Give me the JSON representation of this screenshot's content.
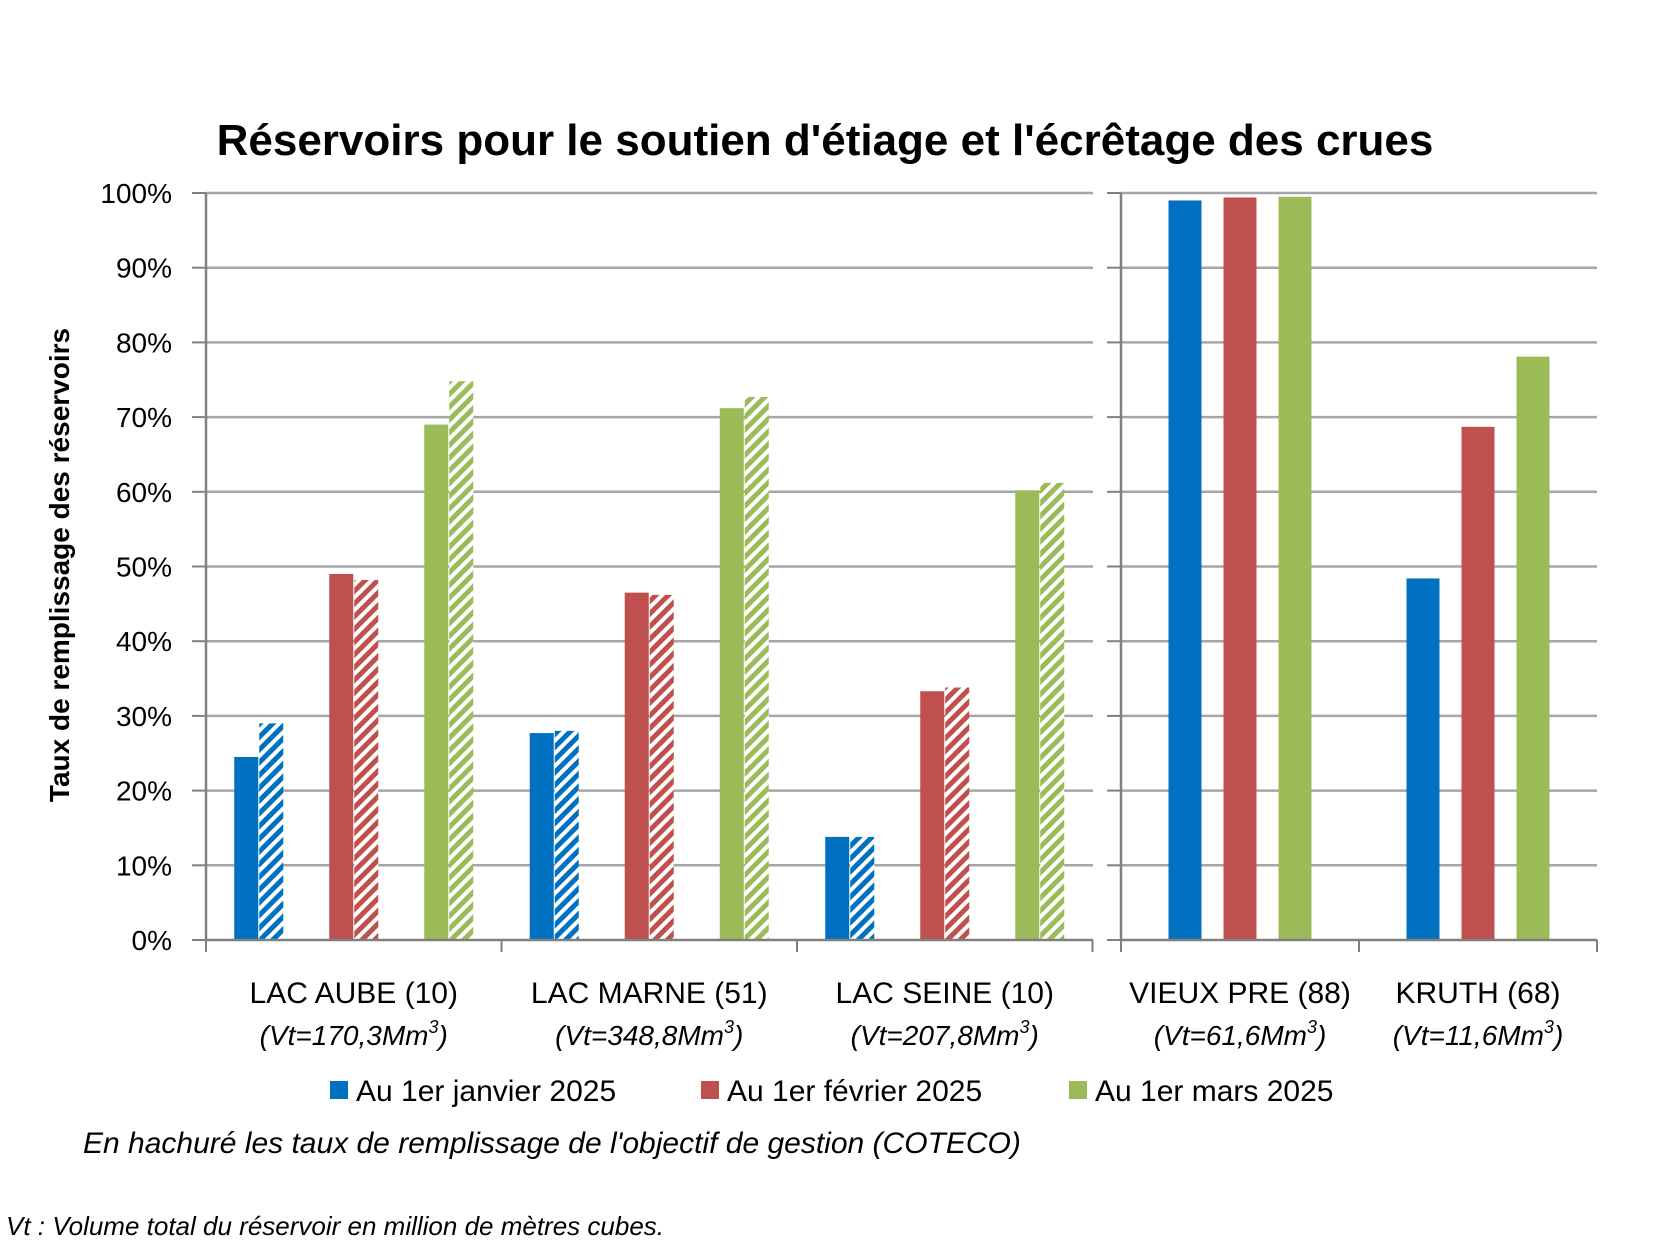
{
  "chart_data": {
    "type": "bar",
    "title": "Réservoirs pour le soutien d'étiage et l'écrêtage des crues",
    "ylabel": "Taux de remplissage des réservoirs",
    "ylim": [
      0,
      100
    ],
    "yticks": [
      "0%",
      "10%",
      "20%",
      "30%",
      "40%",
      "50%",
      "60%",
      "70%",
      "80%",
      "90%",
      "100%"
    ],
    "grid": true,
    "legend_position": "bottom",
    "colors": {
      "jan": "#0070C0",
      "feb": "#C0504D",
      "mar": "#9BBB59",
      "grid": "#A6A6A6",
      "axis": "#808080"
    },
    "panels": [
      {
        "categories": [
          {
            "name": "LAC AUBE (10)",
            "volume_prefix": "(Vt=170,3Mm",
            "volume_sup": "3",
            "volume_suffix": ")"
          },
          {
            "name": "LAC MARNE (51)",
            "volume_prefix": "(Vt=348,8Mm",
            "volume_sup": "3",
            "volume_suffix": ")"
          },
          {
            "name": "LAC SEINE (10)",
            "volume_prefix": "(Vt=207,8Mm",
            "volume_sup": "3",
            "volume_suffix": ")"
          }
        ],
        "series": [
          {
            "name": "Au 1er janvier 2025",
            "key": "jan",
            "values": [
              24.5,
              27.7,
              13.8
            ],
            "objective": [
              29,
              28,
              13.8
            ]
          },
          {
            "name": "Au 1er février 2025",
            "key": "feb",
            "values": [
              49,
              46.5,
              33.3
            ],
            "objective": [
              48.2,
              46.2,
              33.8
            ]
          },
          {
            "name": "Au 1er mars 2025",
            "key": "mar",
            "values": [
              69,
              71.2,
              60.2
            ],
            "objective": [
              74.8,
              72.7,
              61.2
            ]
          }
        ]
      },
      {
        "categories": [
          {
            "name": "VIEUX PRE (88)",
            "volume_prefix": "(Vt=61,6Mm",
            "volume_sup": "3",
            "volume_suffix": ")"
          },
          {
            "name": "KRUTH (68)",
            "volume_prefix": "(Vt=11,6Mm",
            "volume_sup": "3",
            "volume_suffix": ")"
          }
        ],
        "series": [
          {
            "name": "Au 1er janvier 2025",
            "key": "jan",
            "values": [
              99,
              48.4
            ]
          },
          {
            "name": "Au 1er février 2025",
            "key": "feb",
            "values": [
              99.4,
              68.7
            ]
          },
          {
            "name": "Au 1er mars 2025",
            "key": "mar",
            "values": [
              99.5,
              78.1
            ]
          }
        ]
      }
    ],
    "legend": [
      {
        "key": "jan",
        "label": "Au 1er janvier 2025"
      },
      {
        "key": "feb",
        "label": "Au 1er février 2025"
      },
      {
        "key": "mar",
        "label": "Au 1er mars 2025"
      }
    ]
  },
  "notes": {
    "hatched": "En hachuré les taux de remplissage de l'objectif de gestion (COTECO)",
    "vt": "Vt : Volume total du réservoir en million de mètres cubes."
  }
}
